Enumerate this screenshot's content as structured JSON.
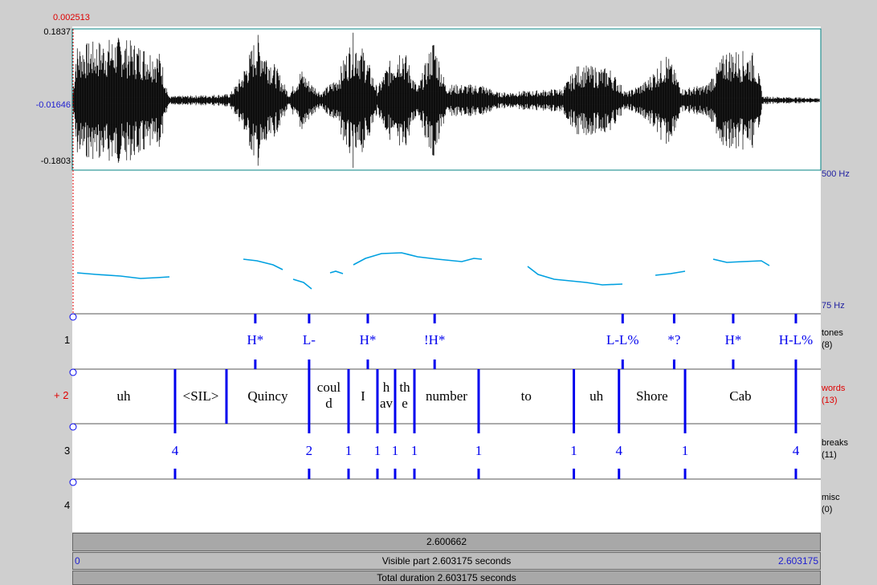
{
  "cursor_time": "0.002513",
  "waveform": {
    "max": "0.1837",
    "mid": "-0.01646",
    "min": "-0.1803"
  },
  "pitch_axis": {
    "top": "500 Hz",
    "bottom": "75 Hz"
  },
  "tiers": [
    {
      "number": "1",
      "name": "tones",
      "count": "(8)"
    },
    {
      "number": "+ 2",
      "name": "words",
      "count": "(13)"
    },
    {
      "number": "3",
      "name": "breaks",
      "count": "(11)"
    },
    {
      "number": "4",
      "name": "misc",
      "count": "(0)"
    }
  ],
  "time_bars": {
    "cursor_value": "2.600662",
    "visible_start": "0",
    "visible_label": "Visible part 2.603175 seconds",
    "visible_end": "2.603175",
    "total_label": "Total duration 2.603175 seconds"
  },
  "tones": [
    {
      "t": 0.2445,
      "label": "H*"
    },
    {
      "t": 0.3164,
      "label": "L-"
    },
    {
      "t": 0.3948,
      "label": "H*"
    },
    {
      "t": 0.4841,
      "label": "!H*"
    },
    {
      "t": 0.7353,
      "label": "L-L%"
    },
    {
      "t": 0.8041,
      "label": "*?"
    },
    {
      "t": 0.883,
      "label": "H*"
    },
    {
      "t": 0.9667,
      "label": "H-L%"
    }
  ],
  "word_boundaries": [
    0.1373,
    0.206,
    0.3164,
    0.3691,
    0.4077,
    0.4313,
    0.4571,
    0.5429,
    0.6701,
    0.7304,
    0.8187,
    0.9667
  ],
  "words": [
    {
      "label": "uh"
    },
    {
      "label": "<SIL>"
    },
    {
      "label": "Quincy"
    },
    {
      "label": "coul d"
    },
    {
      "label": "I"
    },
    {
      "label": "h av"
    },
    {
      "label": "th e"
    },
    {
      "label": "number"
    },
    {
      "label": "to"
    },
    {
      "label": "uh"
    },
    {
      "label": "Shore"
    },
    {
      "label": "Cab"
    },
    {
      "label": ""
    }
  ],
  "breaks": [
    {
      "t": 0.1373,
      "label": "4"
    },
    {
      "t": 0.3164,
      "label": "2"
    },
    {
      "t": 0.3691,
      "label": "1"
    },
    {
      "t": 0.4077,
      "label": "1"
    },
    {
      "t": 0.4313,
      "label": "1"
    },
    {
      "t": 0.4571,
      "label": "1"
    },
    {
      "t": 0.5429,
      "label": "1"
    },
    {
      "t": 0.6701,
      "label": "1"
    },
    {
      "t": 0.7304,
      "label": "4"
    },
    {
      "t": 0.8187,
      "label": "1"
    },
    {
      "t": 0.9667,
      "label": "4"
    }
  ],
  "colors": {
    "waveform": "#000000",
    "pitch": "#00a0e0",
    "boundary": "#0000ee",
    "label": "#0000ee",
    "cursor": "#e00000"
  }
}
